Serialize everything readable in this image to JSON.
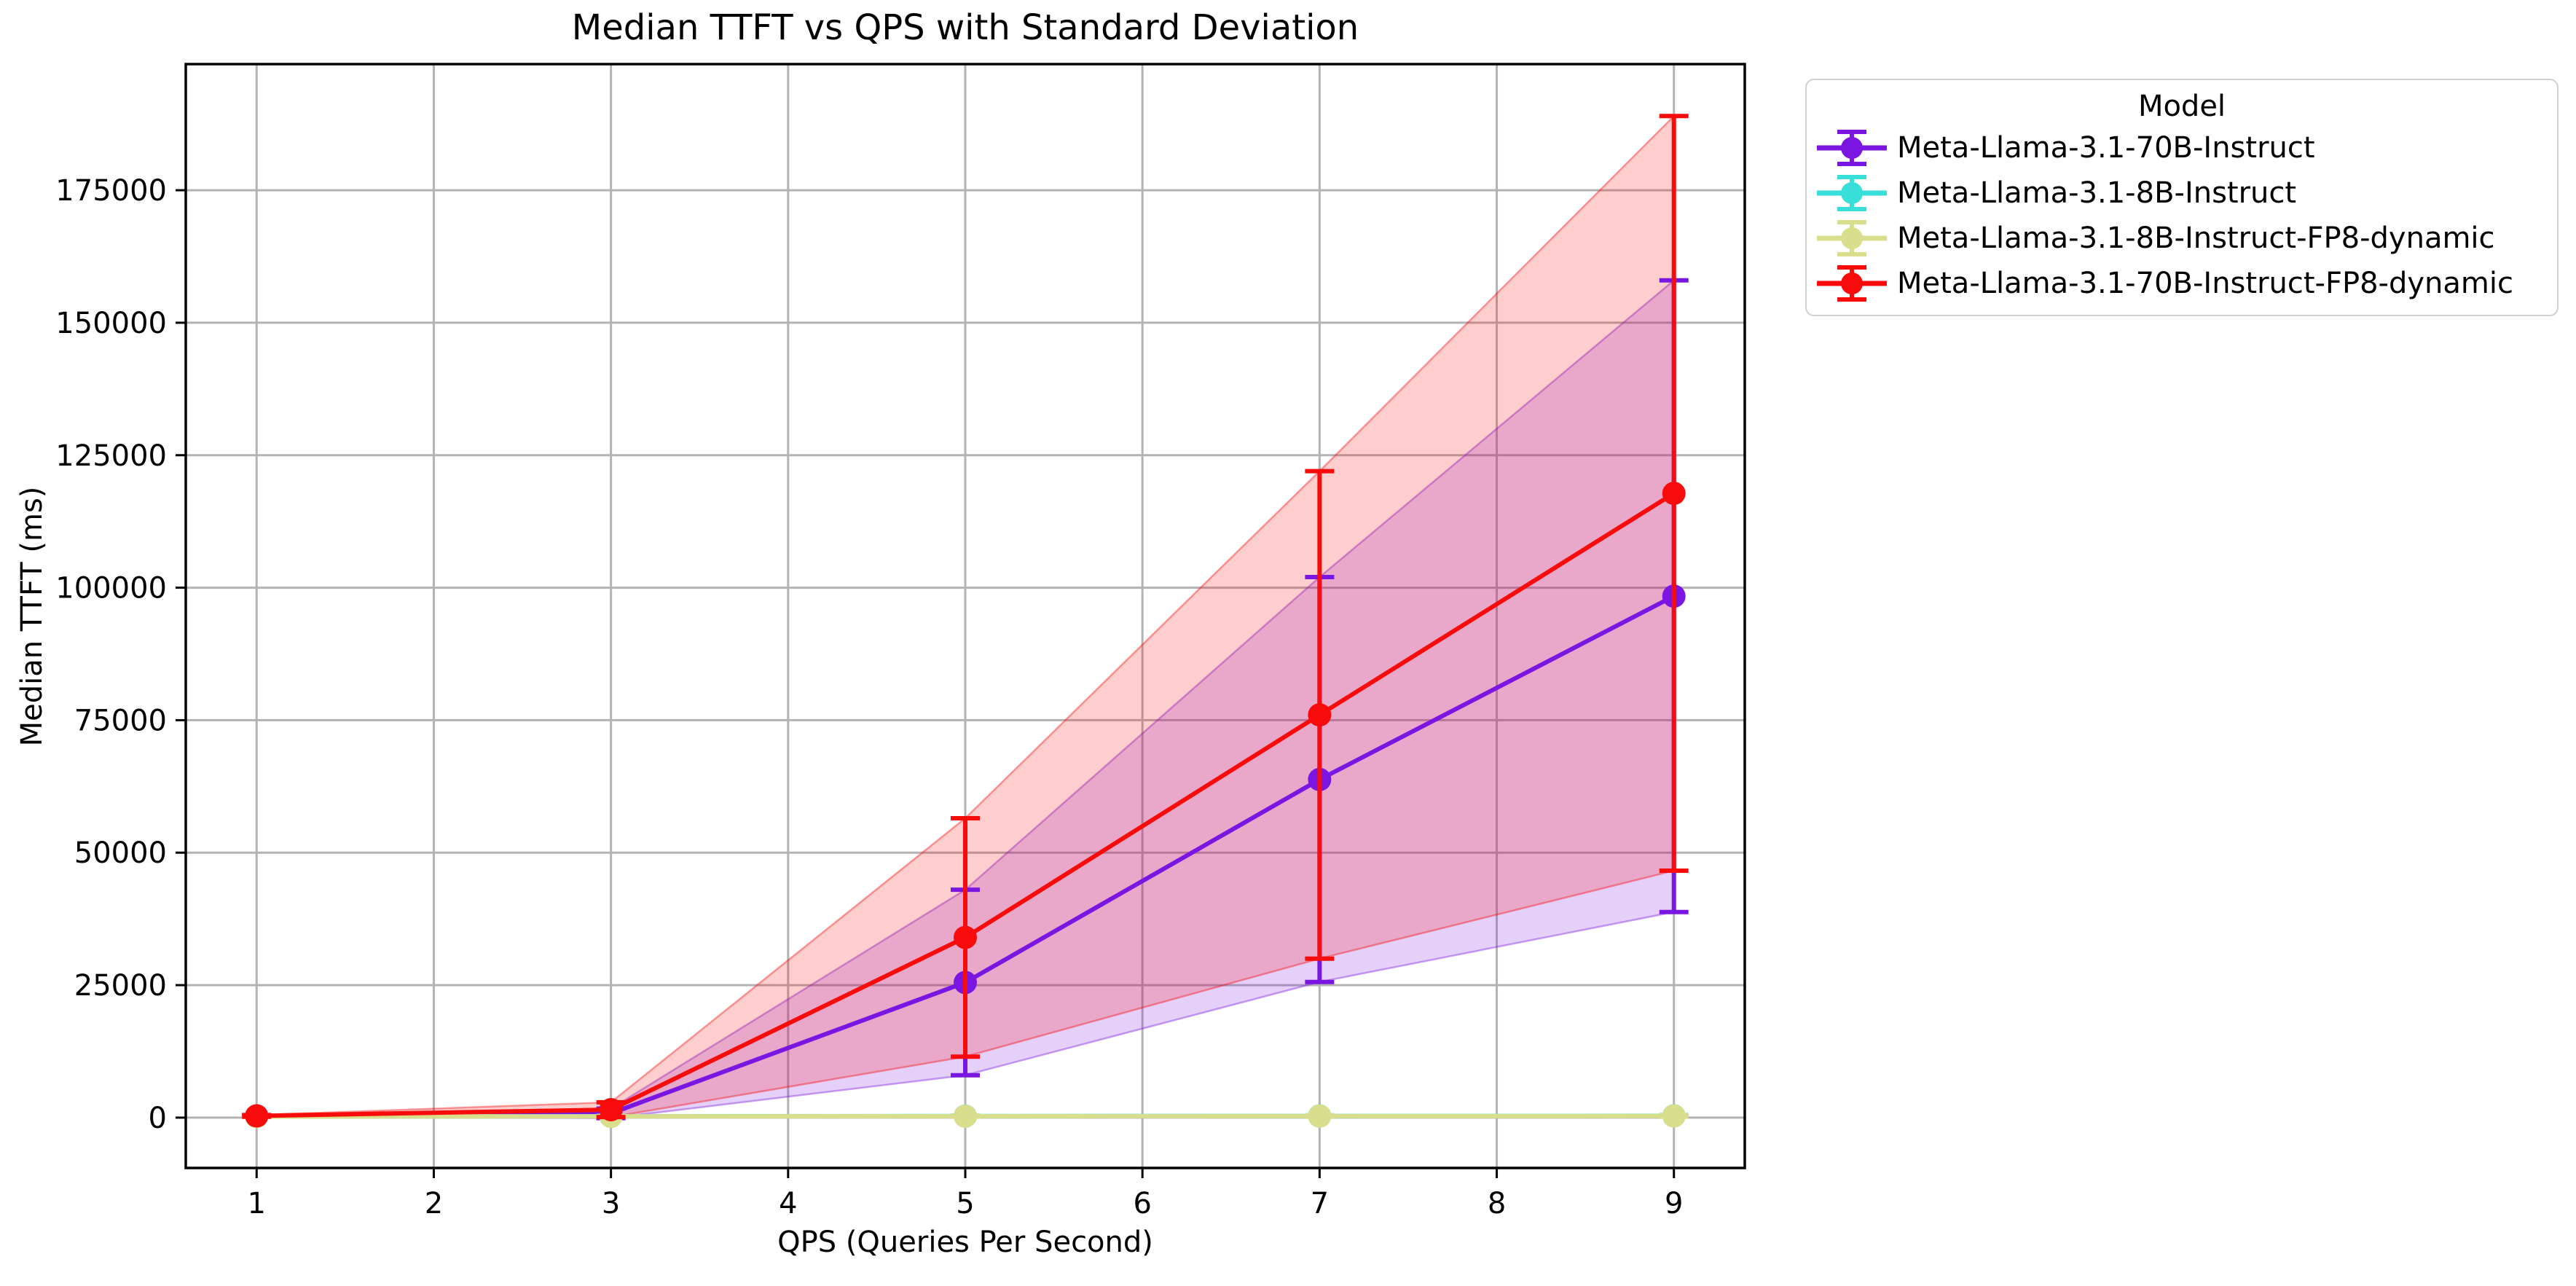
{
  "figure": {
    "background": "#ffffff"
  },
  "chart_data": {
    "type": "line",
    "title": "Median TTFT vs QPS with Standard Deviation",
    "xlabel": "QPS (Queries Per Second)",
    "ylabel": "Median TTFT (ms)",
    "x": [
      1,
      3,
      5,
      7,
      9
    ],
    "xticks": [
      1,
      2,
      3,
      4,
      5,
      6,
      7,
      8,
      9
    ],
    "yticks": [
      0,
      25000,
      50000,
      75000,
      100000,
      125000,
      150000,
      175000
    ],
    "xlim": [
      0.6,
      9.4
    ],
    "ylim": [
      -9500,
      198800
    ],
    "grid": true,
    "grid_color": "#b3b3b3",
    "spine_color": "#000000",
    "band_alpha": 0.2,
    "marker": "circle",
    "error_style": "vertical-bar-with-caps",
    "legend": {
      "title": "Model",
      "position": "outside-upper-right"
    },
    "series": [
      {
        "name": "Meta-Llama-3.1-70B-Instruct",
        "color": "#7b16e2",
        "median": [
          300,
          800,
          25500,
          63800,
          98400
        ],
        "std": [
          120,
          900,
          17500,
          38200,
          59600
        ]
      },
      {
        "name": "Meta-Llama-3.1-8B-Instruct",
        "color": "#38dfd8",
        "median": [
          210,
          260,
          300,
          320,
          340
        ],
        "std": [
          40,
          60,
          90,
          110,
          140
        ]
      },
      {
        "name": "Meta-Llama-3.1-8B-Instruct-FP8-dynamic",
        "color": "#d9de8c",
        "median": [
          190,
          240,
          270,
          290,
          310
        ],
        "std": [
          40,
          60,
          90,
          110,
          140
        ]
      },
      {
        "name": "Meta-Llama-3.1-70B-Instruct-FP8-dynamic",
        "color": "#f80b0b",
        "median": [
          330,
          1500,
          34000,
          76000,
          117800
        ],
        "std": [
          160,
          1400,
          22500,
          46000,
          71200
        ]
      }
    ]
  }
}
